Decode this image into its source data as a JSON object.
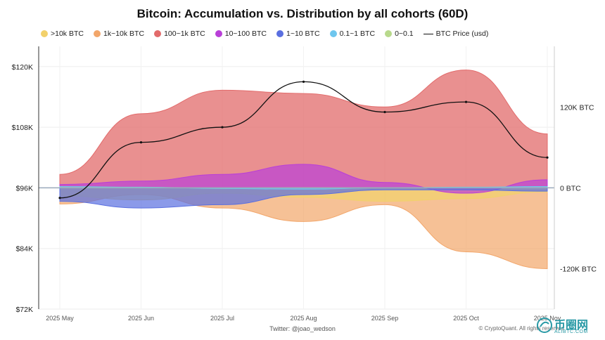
{
  "chart_data": {
    "type": "area",
    "title": "Bitcoin: Accumulation vs. Distribution by all cohorts (60D)",
    "x": [
      "2025 May",
      "2025 Jun",
      "2025 Jul",
      "2025 Aug",
      "2025 Sep",
      "2025 Oct",
      "2025 Nov"
    ],
    "left_axis": {
      "ticks": [
        "$72K",
        "$84K",
        "$96K",
        "$108K",
        "$120K"
      ],
      "ylim": [
        72000,
        124000
      ]
    },
    "right_axis": {
      "ticks": [
        "-120K BTC",
        "0 BTC",
        "120K BTC"
      ],
      "ylim": [
        -180000,
        210000
      ]
    },
    "grid": true,
    "legend_position": "top",
    "series": [
      {
        "name": ">10k BTC",
        "color": "#f2d16b",
        "values": [
          -12000,
          -18000,
          -8000,
          -14000,
          -20000,
          -16000,
          -6000
        ]
      },
      {
        "name": "1k~10k BTC",
        "color": "#f2a66a",
        "values": [
          -24000,
          -10000,
          -30000,
          -50000,
          -25000,
          -95000,
          -120000
        ]
      },
      {
        "name": "100~1k BTC",
        "color": "#e26b6b",
        "values": [
          20000,
          110000,
          145000,
          140000,
          120000,
          175000,
          80000
        ]
      },
      {
        "name": "10~100 BTC",
        "color": "#b93fd8",
        "values": [
          5000,
          10000,
          20000,
          35000,
          8000,
          -8000,
          12000
        ]
      },
      {
        "name": "1~10 BTC",
        "color": "#5a6fe0",
        "values": [
          -20000,
          -30000,
          -25000,
          -10000,
          -3000,
          -3000,
          -5000
        ]
      },
      {
        "name": "0.1~1 BTC",
        "color": "#6ec6ee",
        "values": [
          2000,
          1000,
          -1000,
          -2000,
          0,
          1000,
          2000
        ]
      },
      {
        "name": "0~0.1",
        "color": "#b8d98c",
        "values": [
          500,
          300,
          -200,
          400,
          200,
          100,
          300
        ]
      }
    ],
    "price": {
      "name": "BTC Price (usd)",
      "color": "#111111",
      "values": [
        94000,
        105000,
        108000,
        117000,
        111000,
        113000,
        102000
      ]
    }
  },
  "credit": "Twitter: @joao_wedson",
  "copyright": "© CryptoQuant. All rights reserved",
  "watermark": {
    "name": "币圈网",
    "sub": "ALIBTC.COM"
  }
}
